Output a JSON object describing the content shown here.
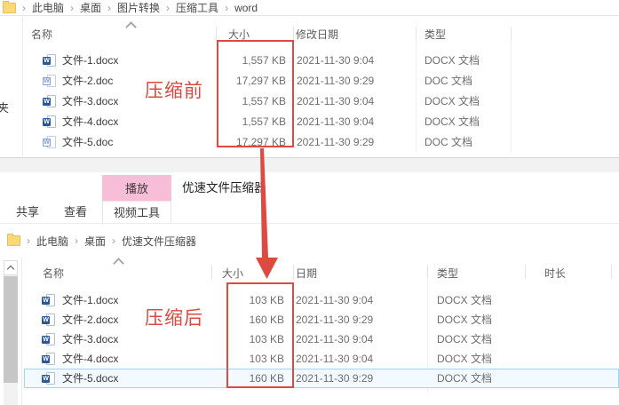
{
  "colors": {
    "annotation_red": "#dc4a41",
    "pink_tab_bg": "#f8bed8",
    "word_blue": "#2b5797",
    "word_blue_light": "#7f9fd4",
    "selection_border": "#9ed4f7",
    "selection_bg": "#f2f9ff",
    "folder_yellow_body": "#fbd978",
    "folder_yellow_edge": "#e8c05a"
  },
  "top_window": {
    "breadcrumb": [
      "此电脑",
      "桌面",
      "图片转换",
      "压缩工具",
      "word"
    ],
    "nav_fragment": "夹",
    "annotation": "压缩前",
    "columns": [
      "名称",
      "大小",
      "修改日期",
      "类型"
    ],
    "files": [
      {
        "name": "文件-1.docx",
        "size": "1,557 KB",
        "date": "2021-11-30 9:04",
        "type": "DOCX 文档",
        "icon": "word-docx",
        "selected": false
      },
      {
        "name": "文件-2.doc",
        "size": "17,297 KB",
        "date": "2021-11-30 9:29",
        "type": "DOC 文档",
        "icon": "word-doc",
        "selected": false
      },
      {
        "name": "文件-3.docx",
        "size": "1,557 KB",
        "date": "2021-11-30 9:04",
        "type": "DOCX 文档",
        "icon": "word-docx",
        "selected": false
      },
      {
        "name": "文件-4.docx",
        "size": "1,557 KB",
        "date": "2021-11-30 9:04",
        "type": "DOCX 文档",
        "icon": "word-docx",
        "selected": false
      },
      {
        "name": "文件-5.doc",
        "size": "17,297 KB",
        "date": "2021-11-30 9:29",
        "type": "DOC 文档",
        "icon": "word-doc",
        "selected": false
      }
    ]
  },
  "bottom_window": {
    "contextual_tab": "播放",
    "window_title": "优速文件压缩器",
    "ribbon_tabs": [
      "共享",
      "查看",
      "视频工具"
    ],
    "breadcrumb": [
      "此电脑",
      "桌面",
      "优速文件压缩器"
    ],
    "annotation": "压缩后",
    "columns": [
      "名称",
      "大小",
      "日期",
      "类型",
      "时长"
    ],
    "files": [
      {
        "name": "文件-1.docx",
        "size": "103 KB",
        "date": "2021-11-30 9:04",
        "type": "DOCX 文档",
        "icon": "word-docx",
        "selected": false
      },
      {
        "name": "文件-2.docx",
        "size": "160 KB",
        "date": "2021-11-30 9:29",
        "type": "DOCX 文档",
        "icon": "word-docx",
        "selected": false
      },
      {
        "name": "文件-3.docx",
        "size": "103 KB",
        "date": "2021-11-30 9:04",
        "type": "DOCX 文档",
        "icon": "word-docx",
        "selected": false
      },
      {
        "name": "文件-4.docx",
        "size": "103 KB",
        "date": "2021-11-30 9:04",
        "type": "DOCX 文档",
        "icon": "word-docx",
        "selected": false
      },
      {
        "name": "文件-5.docx",
        "size": "160 KB",
        "date": "2021-11-30 9:29",
        "type": "DOCX 文档",
        "icon": "word-docx",
        "selected": true
      }
    ]
  }
}
